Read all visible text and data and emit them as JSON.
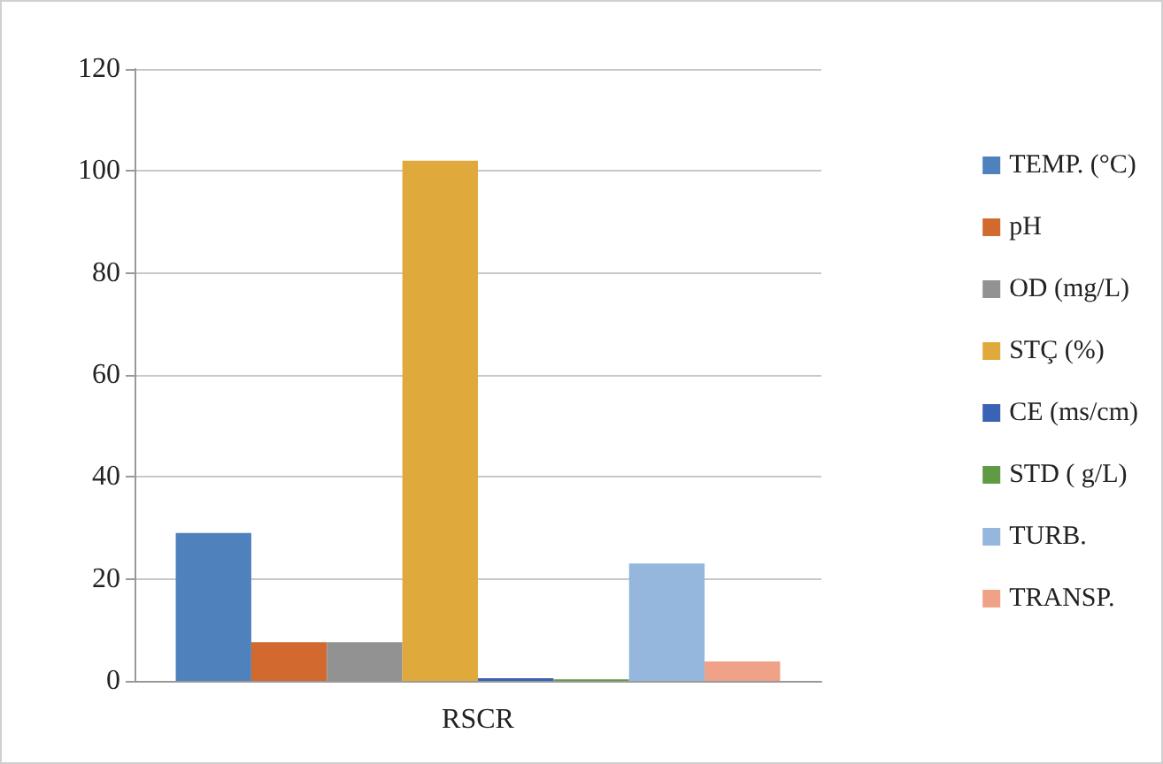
{
  "chart_data": {
    "type": "bar",
    "categories": [
      "RSCR"
    ],
    "series": [
      {
        "name": "TEMP. (°C)",
        "color": "#4f81bd",
        "values": [
          29
        ]
      },
      {
        "name": "pH",
        "color": "#d2692f",
        "values": [
          7.6
        ]
      },
      {
        "name": "OD (mg/L)",
        "color": "#929292",
        "values": [
          7.6
        ]
      },
      {
        "name": "STÇ (%)",
        "color": "#e0a93c",
        "values": [
          102
        ]
      },
      {
        "name": "CE (ms/cm)",
        "color": "#3a62b5",
        "values": [
          0.5
        ]
      },
      {
        "name": "STD ( g/L)",
        "color": "#5f9a45",
        "values": [
          0.3
        ]
      },
      {
        "name": "TURB.",
        "color": "#95b7de",
        "values": [
          23
        ]
      },
      {
        "name": "TRANSP.",
        "color": "#efa287",
        "values": [
          3.8
        ]
      }
    ],
    "ylim": [
      0,
      120
    ],
    "yticks": [
      0,
      20,
      40,
      60,
      80,
      100,
      120
    ],
    "grid": "y",
    "legend": "right"
  }
}
